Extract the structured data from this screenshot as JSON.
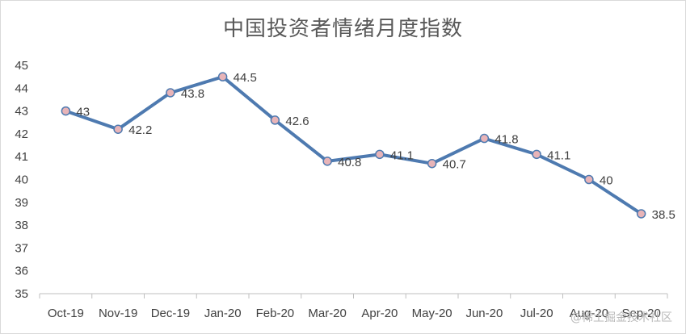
{
  "chart_data": {
    "type": "line",
    "title": "中国投资者情绪月度指数",
    "categories": [
      "Oct-19",
      "Nov-19",
      "Dec-19",
      "Jan-20",
      "Feb-20",
      "Mar-20",
      "Apr-20",
      "May-20",
      "Jun-20",
      "Jul-20",
      "Aug-20",
      "Sep-20"
    ],
    "series": [
      {
        "values": [
          43,
          42.2,
          43.8,
          44.5,
          42.6,
          40.8,
          41.1,
          40.7,
          41.8,
          41.1,
          40,
          38.5
        ]
      }
    ],
    "data_labels": [
      "43",
      "42.2",
      "43.8",
      "44.5",
      "42.6",
      "40.8",
      "41.1",
      "40.7",
      "41.8",
      "41.1",
      "40",
      "38.5"
    ],
    "yticks": [
      "35",
      "36",
      "37",
      "38",
      "39",
      "40",
      "41",
      "42",
      "43",
      "44",
      "45"
    ],
    "ylim": [
      35,
      45
    ],
    "grid": false,
    "legend": "none",
    "line_color": "#4e7ab0",
    "marker_fill": "#e8b4b8"
  },
  "watermark": "@稀土掘金技术社区"
}
